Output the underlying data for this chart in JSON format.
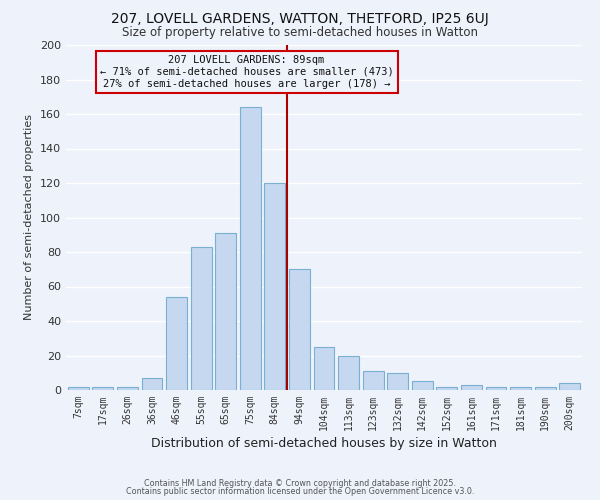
{
  "title1": "207, LOVELL GARDENS, WATTON, THETFORD, IP25 6UJ",
  "title2": "Size of property relative to semi-detached houses in Watton",
  "xlabel": "Distribution of semi-detached houses by size in Watton",
  "ylabel": "Number of semi-detached properties",
  "bar_labels": [
    "7sqm",
    "17sqm",
    "26sqm",
    "36sqm",
    "46sqm",
    "55sqm",
    "65sqm",
    "75sqm",
    "84sqm",
    "94sqm",
    "104sqm",
    "113sqm",
    "123sqm",
    "132sqm",
    "142sqm",
    "152sqm",
    "161sqm",
    "171sqm",
    "181sqm",
    "190sqm",
    "200sqm"
  ],
  "bar_values": [
    2,
    2,
    2,
    7,
    54,
    83,
    91,
    164,
    120,
    70,
    25,
    20,
    11,
    10,
    5,
    2,
    3,
    2,
    2,
    2,
    4
  ],
  "bar_color": "#c5d8f0",
  "bar_edge_color": "#7aafd4",
  "background_color": "#eef2fb",
  "grid_color": "#ffffff",
  "vline_color": "#aa0000",
  "annotation_title": "207 LOVELL GARDENS: 89sqm",
  "annotation_line1": "← 71% of semi-detached houses are smaller (473)",
  "annotation_line2": "27% of semi-detached houses are larger (178) →",
  "annotation_box_edge": "#cc0000",
  "ylim": [
    0,
    200
  ],
  "yticks": [
    0,
    20,
    40,
    60,
    80,
    100,
    120,
    140,
    160,
    180,
    200
  ],
  "footnote1": "Contains HM Land Registry data © Crown copyright and database right 2025.",
  "footnote2": "Contains public sector information licensed under the Open Government Licence v3.0."
}
